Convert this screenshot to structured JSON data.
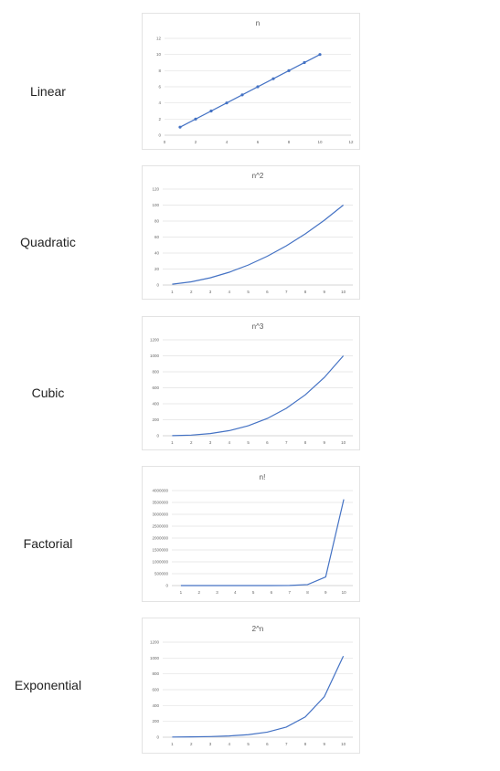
{
  "labels": {
    "linear": "Linear",
    "quadratic": "Quadratic",
    "cubic": "Cubic",
    "factorial": "Factorial",
    "exponential": "Exponential"
  },
  "color": "#4472c4",
  "chart_data": [
    {
      "type": "scatter",
      "title": "n",
      "x": [
        1,
        2,
        3,
        4,
        5,
        6,
        7,
        8,
        9,
        10
      ],
      "values": [
        1,
        2,
        3,
        4,
        5,
        6,
        7,
        8,
        9,
        10
      ],
      "xlim": [
        0,
        12
      ],
      "ylim": [
        0,
        12
      ],
      "xticks": [
        0,
        2,
        4,
        6,
        8,
        10,
        12
      ],
      "yticks": [
        0,
        2,
        4,
        6,
        8,
        10,
        12
      ],
      "trendline": true,
      "grid": true
    },
    {
      "type": "line",
      "title": "n^2",
      "categories": [
        "1",
        "2",
        "3",
        "4",
        "5",
        "6",
        "7",
        "8",
        "9",
        "10"
      ],
      "values": [
        1,
        4,
        9,
        16,
        25,
        36,
        49,
        64,
        81,
        100
      ],
      "ylim": [
        0,
        120
      ],
      "yticks": [
        0,
        20,
        40,
        60,
        80,
        100,
        120
      ],
      "grid": true
    },
    {
      "type": "line",
      "title": "n^3",
      "categories": [
        "1",
        "2",
        "3",
        "4",
        "5",
        "6",
        "7",
        "8",
        "9",
        "10"
      ],
      "values": [
        1,
        8,
        27,
        64,
        125,
        216,
        343,
        512,
        729,
        1000
      ],
      "ylim": [
        0,
        1200
      ],
      "yticks": [
        0,
        200,
        400,
        600,
        800,
        1000,
        1200
      ],
      "grid": true
    },
    {
      "type": "line",
      "title": "n!",
      "categories": [
        "1",
        "2",
        "3",
        "4",
        "5",
        "6",
        "7",
        "8",
        "9",
        "10"
      ],
      "values": [
        1,
        2,
        6,
        24,
        120,
        720,
        5040,
        40320,
        362880,
        3628800
      ],
      "ylim": [
        0,
        4000000
      ],
      "yticks": [
        0,
        500000,
        1000000,
        1500000,
        2000000,
        2500000,
        3000000,
        3500000,
        4000000
      ],
      "grid": true
    },
    {
      "type": "line",
      "title": "2^n",
      "categories": [
        "1",
        "2",
        "3",
        "4",
        "5",
        "6",
        "7",
        "8",
        "9",
        "10"
      ],
      "values": [
        2,
        4,
        8,
        16,
        32,
        64,
        128,
        256,
        512,
        1024
      ],
      "ylim": [
        0,
        1200
      ],
      "yticks": [
        0,
        200,
        400,
        600,
        800,
        1000,
        1200
      ],
      "grid": true
    }
  ]
}
